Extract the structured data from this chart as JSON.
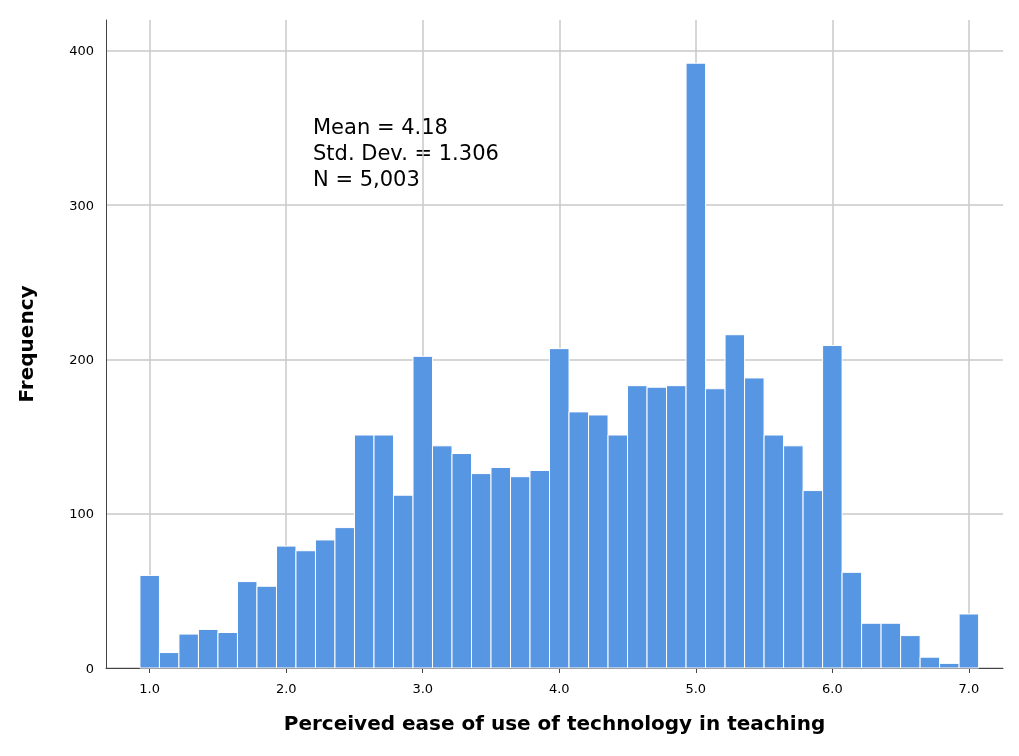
{
  "chart_data": {
    "type": "histogram",
    "xlabel": "Perceived ease of use of technology in teaching",
    "ylabel": "Frequency",
    "annotations": [
      "Mean = 4.18",
      "Std. Dev. = 1.306",
      "N = 5,003"
    ],
    "bins": [
      0.9286,
      1.0714,
      1.2143,
      1.3571,
      1.5,
      1.6429,
      1.7857,
      1.9286,
      2.0714,
      2.2143,
      2.3571,
      2.5,
      2.6429,
      2.7857,
      2.9286,
      3.0714,
      3.2143,
      3.3571,
      3.5,
      3.6429,
      3.7857,
      3.9286,
      4.0714,
      4.2143,
      4.3571,
      4.5,
      4.6429,
      4.7857,
      4.9286,
      5.0714,
      5.2143,
      5.3571,
      5.5,
      5.6429,
      5.7857,
      5.9286,
      6.0714,
      6.2143,
      6.3571,
      6.5,
      6.6429,
      6.7857,
      6.9286,
      7.0714
    ],
    "values": [
      60,
      10,
      22,
      25,
      23,
      56,
      53,
      79,
      76,
      83,
      91,
      151,
      151,
      112,
      202,
      144,
      139,
      126,
      130,
      124,
      128,
      207,
      166,
      164,
      151,
      183,
      182,
      183,
      392,
      181,
      216,
      188,
      151,
      144,
      115,
      209,
      62,
      29,
      29,
      21,
      7,
      3,
      35
    ],
    "color": "#5796e3",
    "xlim": [
      0.68,
      7.25
    ],
    "ylim": [
      0,
      420
    ],
    "xticks": [
      {
        "value": 1,
        "label": "1.0"
      },
      {
        "value": 2,
        "label": "2.0"
      },
      {
        "value": 3,
        "label": "3.0"
      },
      {
        "value": 4,
        "label": "4.0"
      },
      {
        "value": 5,
        "label": "5.0"
      },
      {
        "value": 6,
        "label": "6.0"
      },
      {
        "value": 7,
        "label": "7.0"
      }
    ],
    "yticks": [
      0,
      100,
      200,
      300,
      400
    ],
    "grid": true
  }
}
